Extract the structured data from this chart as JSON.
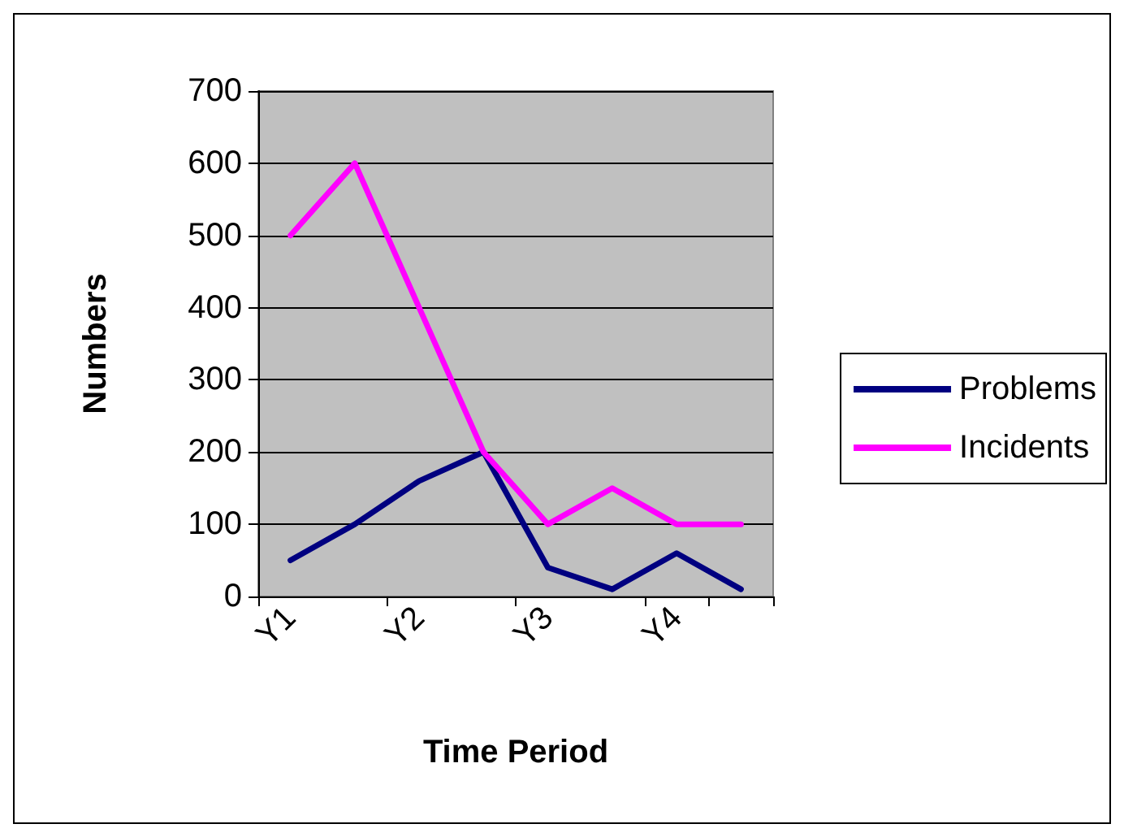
{
  "chart_data": {
    "type": "line",
    "xlabel": "Time Period",
    "ylabel": "Numbers",
    "categories": [
      "Y1",
      null,
      "Y2",
      null,
      "Y3",
      null,
      "Y4",
      null
    ],
    "series": [
      {
        "name": "Problems",
        "color": "#000080",
        "values": [
          50,
          100,
          160,
          200,
          40,
          10,
          60,
          10
        ]
      },
      {
        "name": "Incidents",
        "color": "#ff00ff",
        "values": [
          500,
          600,
          400,
          200,
          100,
          150,
          100,
          100
        ]
      }
    ],
    "ylim": [
      0,
      700
    ],
    "yticks": [
      0,
      100,
      200,
      300,
      400,
      500,
      600,
      700
    ],
    "grid": "y",
    "legend": "right",
    "marker": "none",
    "line_style": "solid"
  }
}
